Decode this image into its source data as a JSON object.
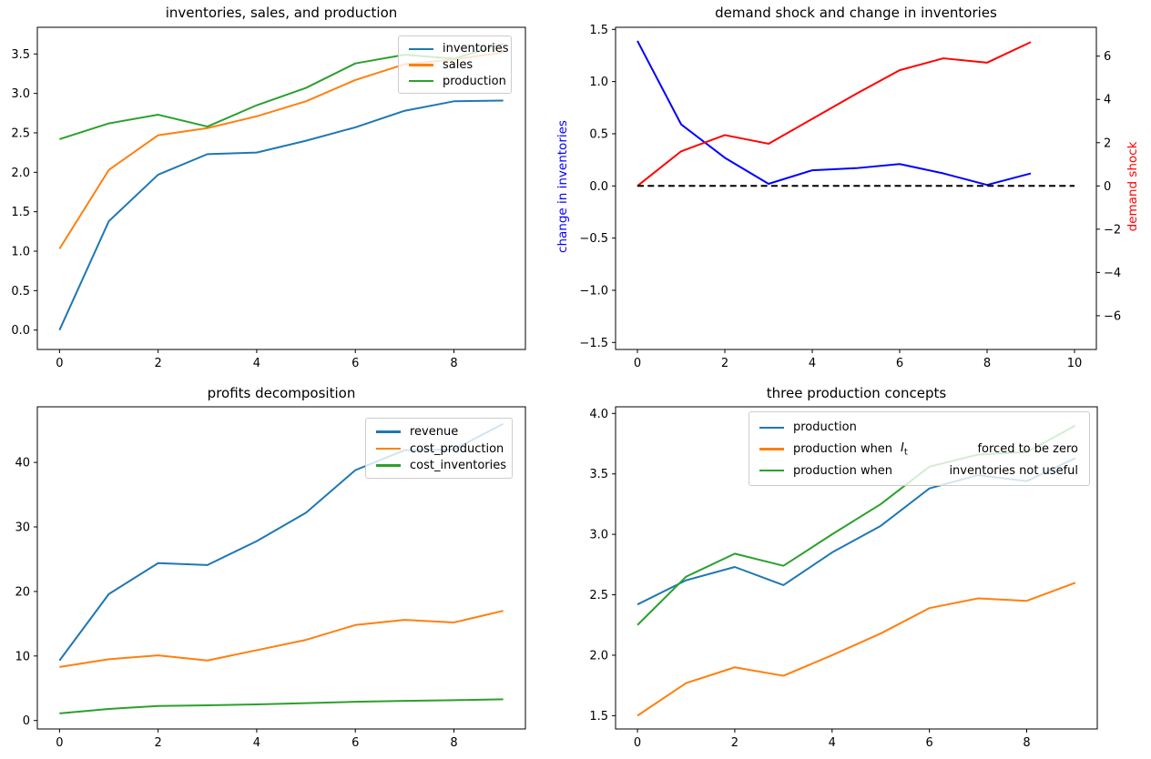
{
  "figure": {
    "background": "#ffffff",
    "text_color": "#000000",
    "spine_color": "#000000"
  },
  "colors": {
    "mpl_blue": "#1f77b4",
    "mpl_orange": "#ff7f0e",
    "mpl_green": "#2ca02c",
    "pure_blue": "#0000ff",
    "pure_red": "#ff0000",
    "black": "#000000"
  },
  "chart_data": [
    {
      "id": "inventories-sales-production",
      "type": "line",
      "title": "inventories, sales, and production",
      "x": [
        0,
        1,
        2,
        3,
        4,
        5,
        6,
        7,
        8,
        9
      ],
      "series": [
        {
          "name": "inventories",
          "color": "#1f77b4",
          "values": [
            0.0,
            1.38,
            1.97,
            2.23,
            2.25,
            2.4,
            2.57,
            2.78,
            2.9,
            2.91
          ]
        },
        {
          "name": "sales",
          "color": "#ff7f0e",
          "values": [
            1.03,
            2.03,
            2.47,
            2.56,
            2.71,
            2.9,
            3.17,
            3.37,
            3.43,
            3.52
          ]
        },
        {
          "name": "production",
          "color": "#2ca02c",
          "values": [
            2.42,
            2.62,
            2.73,
            2.58,
            2.85,
            3.07,
            3.38,
            3.49,
            3.44,
            3.63
          ]
        }
      ],
      "xticks": {
        "values": [
          0,
          2,
          4,
          6,
          8
        ],
        "labels": [
          "0",
          "2",
          "4",
          "6",
          "8"
        ]
      },
      "yticks": {
        "values": [
          0,
          0.5,
          1,
          1.5,
          2,
          2.5,
          3,
          3.5
        ],
        "labels": [
          "0.0",
          "0.5",
          "1.0",
          "1.5",
          "2.0",
          "2.5",
          "3.0",
          "3.5"
        ]
      },
      "xlim": [
        -0.45,
        9.45
      ],
      "ylim": [
        -0.246,
        3.838
      ],
      "grid": false,
      "legend": {
        "position": "upper right",
        "entries": [
          "inventories",
          "sales",
          "production"
        ]
      }
    },
    {
      "id": "demand-shock-change-in-inventories",
      "type": "line",
      "title": "demand shock and change in inventories",
      "x": [
        0,
        1,
        2,
        3,
        4,
        5,
        6,
        7,
        8,
        9
      ],
      "left_ylabel": "change in inventories",
      "left_ylabel_color": "#0000ff",
      "right_ylabel": "demand shock",
      "right_ylabel_color": "#ff0000",
      "series": [
        {
          "name": "change in inventories",
          "axis": "left",
          "color": "#0000ff",
          "values": [
            1.39,
            0.59,
            0.27,
            0.02,
            0.15,
            0.17,
            0.21,
            0.12,
            0.01,
            0.12
          ]
        },
        {
          "name": "demand shock",
          "axis": "right",
          "color": "#ff0000",
          "values": [
            0.0,
            1.6,
            2.35,
            1.95,
            3.1,
            4.25,
            5.35,
            5.9,
            5.7,
            6.65
          ]
        },
        {
          "name": "zero line",
          "axis": "left",
          "color": "#000000",
          "linestyle": "dashed",
          "x": [
            0,
            10
          ],
          "values": [
            0,
            0
          ]
        }
      ],
      "xticks": {
        "values": [
          0,
          2,
          4,
          6,
          8,
          10
        ],
        "labels": [
          "0",
          "2",
          "4",
          "6",
          "8",
          "10"
        ]
      },
      "yticks_left": {
        "values": [
          -1.5,
          -1.0,
          -0.5,
          0.0,
          0.5,
          1.0,
          1.5
        ],
        "labels": [
          "−1.5",
          "−1.0",
          "−0.5",
          "0.0",
          "0.5",
          "1.0",
          "1.5"
        ]
      },
      "yticks_right": {
        "values": [
          -6,
          -4,
          -2,
          0,
          2,
          4,
          6
        ],
        "labels": [
          "−6",
          "−4",
          "−2",
          "0",
          "2",
          "4",
          "6"
        ]
      },
      "xlim": [
        -0.5,
        10.5
      ],
      "ylim_left": [
        -1.567,
        1.52
      ],
      "ylim_right": [
        -7.56,
        7.333
      ],
      "grid": false,
      "legend": null
    },
    {
      "id": "profits-decomposition",
      "type": "line",
      "title": "profits decomposition",
      "x": [
        0,
        1,
        2,
        3,
        4,
        5,
        6,
        7,
        8,
        9
      ],
      "series": [
        {
          "name": "revenue",
          "color": "#1f77b4",
          "values": [
            9.3,
            19.6,
            24.4,
            24.1,
            27.8,
            32.2,
            38.8,
            41.9,
            42.0,
            46.0
          ]
        },
        {
          "name": "cost_production",
          "color": "#ff7f0e",
          "values": [
            8.3,
            9.5,
            10.1,
            9.3,
            10.9,
            12.5,
            14.8,
            15.6,
            15.2,
            17.0
          ]
        },
        {
          "name": "cost_inventories",
          "color": "#2ca02c",
          "values": [
            1.1,
            1.8,
            2.25,
            2.35,
            2.5,
            2.7,
            2.9,
            3.05,
            3.15,
            3.3
          ]
        }
      ],
      "xticks": {
        "values": [
          0,
          2,
          4,
          6,
          8
        ],
        "labels": [
          "0",
          "2",
          "4",
          "6",
          "8"
        ]
      },
      "yticks": {
        "values": [
          0,
          10,
          20,
          30,
          40
        ],
        "labels": [
          "0",
          "10",
          "20",
          "30",
          "40"
        ]
      },
      "xlim": [
        -0.45,
        9.45
      ],
      "ylim": [
        -1.31,
        48.62
      ],
      "grid": false,
      "legend": {
        "position": "upper right",
        "entries": [
          "revenue",
          "cost_production",
          "cost_inventories"
        ]
      }
    },
    {
      "id": "three-production-concepts",
      "type": "line",
      "title": "three production concepts",
      "x": [
        0,
        1,
        2,
        3,
        4,
        5,
        6,
        7,
        8,
        9
      ],
      "series": [
        {
          "name": "production",
          "color": "#1f77b4",
          "values": [
            2.42,
            2.62,
            2.73,
            2.58,
            2.85,
            3.07,
            3.38,
            3.49,
            3.44,
            3.63
          ]
        },
        {
          "name": "production when I_t forced to be zero",
          "color": "#ff7f0e",
          "values": [
            1.5,
            1.77,
            1.9,
            1.83,
            2.0,
            2.18,
            2.39,
            2.47,
            2.45,
            2.6
          ]
        },
        {
          "name": "production when inventories not useful",
          "color": "#2ca02c",
          "values": [
            2.25,
            2.65,
            2.84,
            2.74,
            3.0,
            3.25,
            3.56,
            3.66,
            3.68,
            3.9
          ]
        }
      ],
      "xticks": {
        "values": [
          0,
          2,
          4,
          6,
          8
        ],
        "labels": [
          "0",
          "2",
          "4",
          "6",
          "8"
        ]
      },
      "yticks": {
        "values": [
          1.5,
          2.0,
          2.5,
          3.0,
          3.5,
          4.0
        ],
        "labels": [
          "1.5",
          "2.0",
          "2.5",
          "3.0",
          "3.5",
          "4.0"
        ]
      },
      "xlim": [
        -0.45,
        9.45
      ],
      "ylim": [
        1.39,
        4.055
      ],
      "grid": false,
      "legend": {
        "position": "upper center",
        "entries_rich": [
          {
            "pre": "production",
            "math": "",
            "tail": ""
          },
          {
            "pre": "production when",
            "math": "I_t",
            "tail": "forced to be zero"
          },
          {
            "pre": "production when",
            "math": "",
            "tail": "inventories not useful"
          }
        ]
      }
    }
  ]
}
